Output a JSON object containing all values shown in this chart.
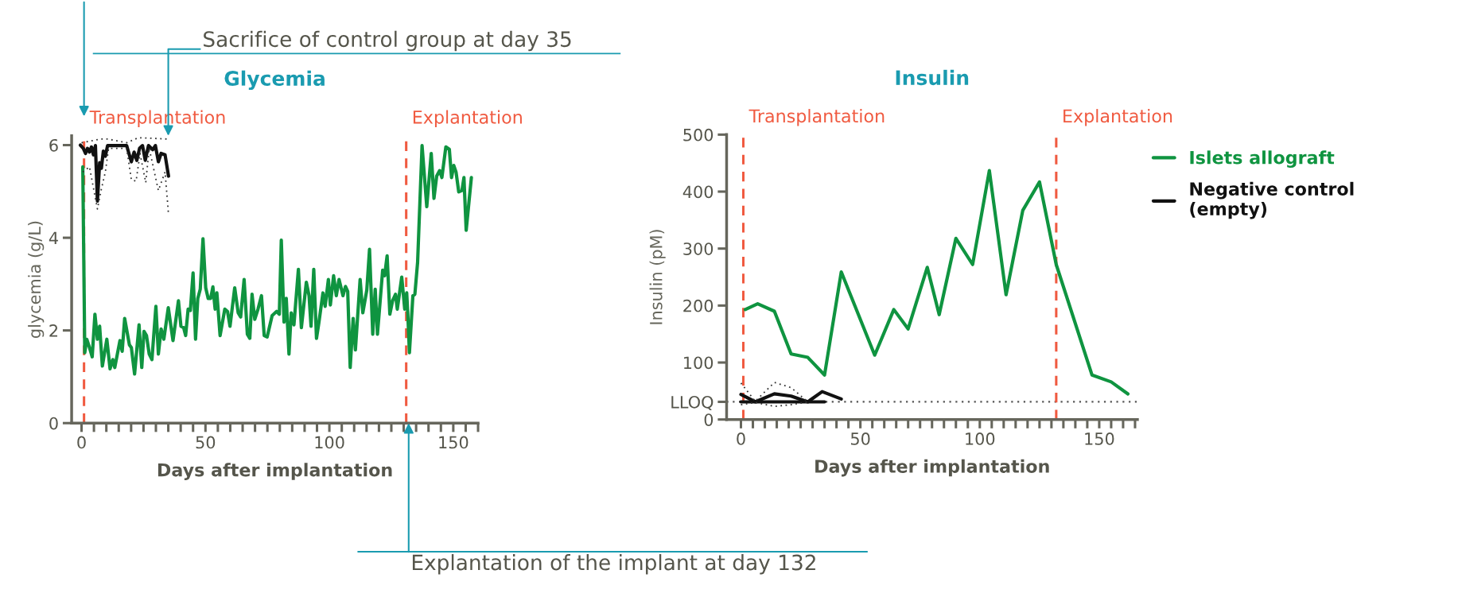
{
  "chart_data": [
    {
      "type": "line",
      "title": "Glycemia",
      "xlabel": "Days after implantation",
      "ylabel": "glycemia (g/L)",
      "xlim": [
        -4,
        160
      ],
      "ylim": [
        0,
        6.2
      ],
      "xticks": [
        0,
        {
          "value": 5,
          "label": null
        },
        {
          "value": 10,
          "label": null
        },
        {
          "value": 15,
          "label": null
        },
        {
          "value": 20,
          "label": null
        },
        {
          "value": 25,
          "label": null
        },
        {
          "value": 30,
          "label": null
        },
        {
          "value": 35,
          "label": null
        },
        {
          "value": 40,
          "label": null
        },
        {
          "value": 45,
          "label": null
        },
        50,
        {
          "value": 55,
          "label": null
        },
        {
          "value": 60,
          "label": null
        },
        {
          "value": 65,
          "label": null
        },
        {
          "value": 70,
          "label": null
        },
        {
          "value": 75,
          "label": null
        },
        {
          "value": 80,
          "label": null
        },
        {
          "value": 85,
          "label": null
        },
        {
          "value": 90,
          "label": null
        },
        {
          "value": 95,
          "label": null
        },
        100,
        {
          "value": 105,
          "label": null
        },
        {
          "value": 110,
          "label": null
        },
        {
          "value": 115,
          "label": null
        },
        {
          "value": 120,
          "label": null
        },
        {
          "value": 125,
          "label": null
        },
        {
          "value": 130,
          "label": null
        },
        {
          "value": 135,
          "label": null
        },
        {
          "value": 140,
          "label": null
        },
        {
          "value": 145,
          "label": null
        },
        150,
        {
          "value": 155,
          "label": null
        },
        {
          "value": 160,
          "label": null
        }
      ],
      "yticks": [
        0,
        2,
        4,
        6
      ],
      "series": [
        {
          "color": "#0f9440",
          "x": [
            0.5,
            1.3,
            2.1,
            3.2,
            4.3,
            5.4,
            6.4,
            7.3,
            8.4,
            10.2,
            11.5,
            12.6,
            13.4,
            15.5,
            16.4,
            17.4,
            19.3,
            20.1,
            21.4,
            23.2,
            24.3,
            25.2,
            26.2,
            27.3,
            28.4,
            30.0,
            31.0,
            32.1,
            33.2,
            35.0,
            36.9,
            39.1,
            40.1,
            41.2,
            42.0,
            43.0,
            43.9,
            45.0,
            46.0,
            46.9,
            47.9,
            49.0,
            50.1,
            51.1,
            52.1,
            53.0,
            53.9,
            54.6,
            55.9,
            57.8,
            58.9,
            59.9,
            61.8,
            63.2,
            64.2,
            65.6,
            66.9,
            67.9,
            68.8,
            69.9,
            71.2,
            72.6,
            73.7,
            74.9,
            76.9,
            78.7,
            79.8,
            80.6,
            81.7,
            82.6,
            83.7,
            84.6,
            85.7,
            87.5,
            88.7,
            90.7,
            91.8,
            92.6,
            93.7,
            94.8,
            95.8,
            97.4,
            98.3,
            99.6,
            100.4,
            101.7,
            102.8,
            103.9,
            105.5,
            106.5,
            107.4,
            108.4,
            109.6,
            110.5,
            112.4,
            113.5,
            115.1,
            116.2,
            117.5,
            118.5,
            119.4,
            121.5,
            122.3,
            123.3,
            124.4,
            125.5,
            126.7,
            127.4,
            129.2,
            130.4,
            131.2,
            131.6,
            132.3,
            133.7,
            134.5,
            135.6,
            137.4,
            139.3,
            141.1,
            142.2,
            143.3,
            144.5,
            145.4,
            147.0,
            148.4,
            149.3,
            150.2,
            151.1,
            152.2,
            153.5,
            154.3,
            155.2,
            157.3
          ],
          "values": [
            5.53,
            1.52,
            1.81,
            1.63,
            1.43,
            2.35,
            1.81,
            2.09,
            1.23,
            1.81,
            1.17,
            1.37,
            1.2,
            1.78,
            1.55,
            2.26,
            1.69,
            1.63,
            1.06,
            2.12,
            1.2,
            1.98,
            1.89,
            1.49,
            1.37,
            2.52,
            1.49,
            2.03,
            1.81,
            2.49,
            1.78,
            2.64,
            2.09,
            2.06,
            1.89,
            2.46,
            2.43,
            3.24,
            1.81,
            2.69,
            2.89,
            3.98,
            2.92,
            2.69,
            2.69,
            2.94,
            2.46,
            2.81,
            1.89,
            2.46,
            2.41,
            2.09,
            2.92,
            2.38,
            2.29,
            3.1,
            1.92,
            1.83,
            2.78,
            2.24,
            2.46,
            2.75,
            1.89,
            1.86,
            2.32,
            2.41,
            2.35,
            3.95,
            2.18,
            2.69,
            1.49,
            2.38,
            2.12,
            3.32,
            2.06,
            3.04,
            2.75,
            2.09,
            3.32,
            1.83,
            2.18,
            2.81,
            2.52,
            3.1,
            2.55,
            3.18,
            2.75,
            3.1,
            2.75,
            2.95,
            2.84,
            1.2,
            2.26,
            1.58,
            3.1,
            2.38,
            2.87,
            3.75,
            1.92,
            2.89,
            1.92,
            3.3,
            3.18,
            3.61,
            2.35,
            2.64,
            2.78,
            2.46,
            3.15,
            2.46,
            2.81,
            2.41,
            1.52,
            2.75,
            2.78,
            3.47,
            5.99,
            4.67,
            5.82,
            4.85,
            5.33,
            5.45,
            5.3,
            5.96,
            5.91,
            5.3,
            5.56,
            5.42,
            4.99,
            5.02,
            5.3,
            4.16,
            5.3
          ]
        },
        {
          "color": "#111111",
          "x": [
            -0.5,
            0.7,
            1.6,
            2.4,
            3.2,
            4.0,
            4.8,
            5.6,
            6.4,
            7.3,
            8.0,
            8.8,
            9.6,
            10.5,
            18.2,
            20.1,
            21.2,
            22.3,
            23.4,
            24.6,
            25.7,
            27.0,
            28.7,
            29.8,
            31.0,
            32.1,
            33.7,
            35.1
          ],
          "values": [
            6.0,
            5.93,
            5.82,
            5.93,
            5.85,
            5.96,
            5.79,
            5.99,
            4.79,
            5.62,
            5.5,
            5.87,
            5.76,
            5.99,
            5.99,
            5.64,
            5.85,
            5.67,
            5.93,
            5.99,
            5.67,
            5.99,
            5.9,
            5.99,
            5.64,
            5.82,
            5.79,
            5.33
          ]
        },
        {
          "color": "#333333",
          "line_style": "dotted",
          "x": [
            0,
            7.5,
            10.7,
            18.2,
            23,
            35
          ],
          "values": [
            6.05,
            6.13,
            6.13,
            6.05,
            6.16,
            6.13
          ]
        },
        {
          "color": "#333333",
          "line_style": "dotted",
          "x": [
            0.5,
            3.2,
            6.4,
            8,
            9.6,
            10.9,
            18.2,
            20.1,
            22,
            23.6,
            25.9,
            27.3,
            31,
            33.7,
            35.1
          ],
          "values": [
            5.42,
            5.53,
            4.62,
            5.05,
            5.42,
            5.93,
            5.93,
            5.25,
            5.22,
            5.82,
            5.19,
            5.93,
            5.02,
            5.42,
            4.5
          ]
        }
      ],
      "ref_lines": [
        {
          "axis": "x",
          "value": 1,
          "label": "Transplantation",
          "color": "#f05a40",
          "line_style": "dashed"
        },
        {
          "axis": "x",
          "value": 131,
          "label": "Explantation",
          "color": "#f05a40",
          "line_style": "dashed"
        }
      ],
      "annotations": [
        {
          "text": "Sacrifice of control group at day 35",
          "x": 35,
          "y": 6.2
        },
        {
          "text": "Explantation of the implant at day 132",
          "x": 132,
          "y": 0
        }
      ]
    },
    {
      "type": "line",
      "title": "Insulin",
      "xlabel": "Days after implantation",
      "ylabel": "Insulin (pM)",
      "xlim": [
        -6,
        166
      ],
      "ylim": [
        0,
        500
      ],
      "xticks": [
        0,
        {
          "value": 5,
          "label": null
        },
        {
          "value": 10,
          "label": null
        },
        {
          "value": 15,
          "label": null
        },
        {
          "value": 20,
          "label": null
        },
        {
          "value": 25,
          "label": null
        },
        {
          "value": 30,
          "label": null
        },
        {
          "value": 35,
          "label": null
        },
        {
          "value": 40,
          "label": null
        },
        {
          "value": 45,
          "label": null
        },
        50,
        {
          "value": 55,
          "label": null
        },
        {
          "value": 60,
          "label": null
        },
        {
          "value": 65,
          "label": null
        },
        {
          "value": 70,
          "label": null
        },
        {
          "value": 75,
          "label": null
        },
        {
          "value": 80,
          "label": null
        },
        {
          "value": 85,
          "label": null
        },
        {
          "value": 90,
          "label": null
        },
        {
          "value": 95,
          "label": null
        },
        100,
        {
          "value": 105,
          "label": null
        },
        {
          "value": 110,
          "label": null
        },
        {
          "value": 115,
          "label": null
        },
        {
          "value": 120,
          "label": null
        },
        {
          "value": 125,
          "label": null
        },
        {
          "value": 130,
          "label": null
        },
        {
          "value": 135,
          "label": null
        },
        {
          "value": 140,
          "label": null
        },
        {
          "value": 145,
          "label": null
        },
        150,
        {
          "value": 155,
          "label": null
        },
        {
          "value": 160,
          "label": null
        },
        {
          "value": 165,
          "label": null
        }
      ],
      "yticks": [
        0,
        {
          "value": 31,
          "label": "LLOQ"
        },
        100,
        200,
        300,
        400,
        500
      ],
      "legend": "right",
      "series": [
        {
          "name": "Islets allograft",
          "color": "#0f9440",
          "x": [
            1.8,
            7,
            14,
            21,
            28,
            35,
            42,
            56,
            64,
            70,
            78,
            83,
            90,
            97,
            104,
            111,
            118,
            125,
            132,
            147,
            155,
            162
          ],
          "values": [
            193,
            203,
            190,
            115,
            109,
            78,
            259,
            113,
            193,
            159,
            267,
            184,
            318,
            272,
            437,
            219,
            367,
            417,
            272,
            78,
            66,
            45
          ]
        },
        {
          "name": "Negative control\n(empty)",
          "color": "#111111",
          "x": [
            0,
            6,
            14,
            21,
            28,
            34,
            42
          ],
          "values": [
            44,
            31,
            45,
            41,
            31,
            49,
            36
          ]
        },
        {
          "color": "#111111",
          "x": [
            0,
            35
          ],
          "values": [
            31,
            31
          ]
        },
        {
          "color": "#333333",
          "line_style": "dotted",
          "x": [
            0,
            6,
            14,
            21,
            28
          ],
          "values": [
            64,
            32,
            65,
            56,
            31
          ]
        },
        {
          "color": "#333333",
          "line_style": "dotted",
          "x": [
            0,
            6,
            14,
            21,
            28
          ],
          "values": [
            26,
            30,
            23,
            26,
            31
          ]
        }
      ],
      "ref_lines": [
        {
          "axis": "x",
          "value": 1,
          "label": "Transplantation",
          "color": "#f05a40",
          "line_style": "dashed"
        },
        {
          "axis": "x",
          "value": 132,
          "label": "Explantation",
          "color": "#f05a40",
          "line_style": "dashed"
        },
        {
          "axis": "y",
          "value": 31,
          "color": "#555555",
          "line_style": "dotted"
        }
      ]
    }
  ]
}
